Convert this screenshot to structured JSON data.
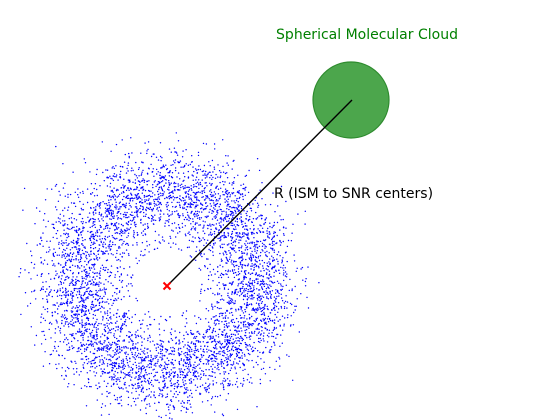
{
  "labels": {
    "cloud_title": "Spherical Molecular Cloud",
    "distance_label": "R (ISM to SNR centers)"
  },
  "colors": {
    "cloud_fill": "#4ca64c",
    "cloud_edge": "#2e8b2e",
    "title_text": "#008000",
    "shell_points": "#0000ff",
    "center_marker": "#ff0000",
    "line": "#000000",
    "label_text": "#000000"
  }
}
